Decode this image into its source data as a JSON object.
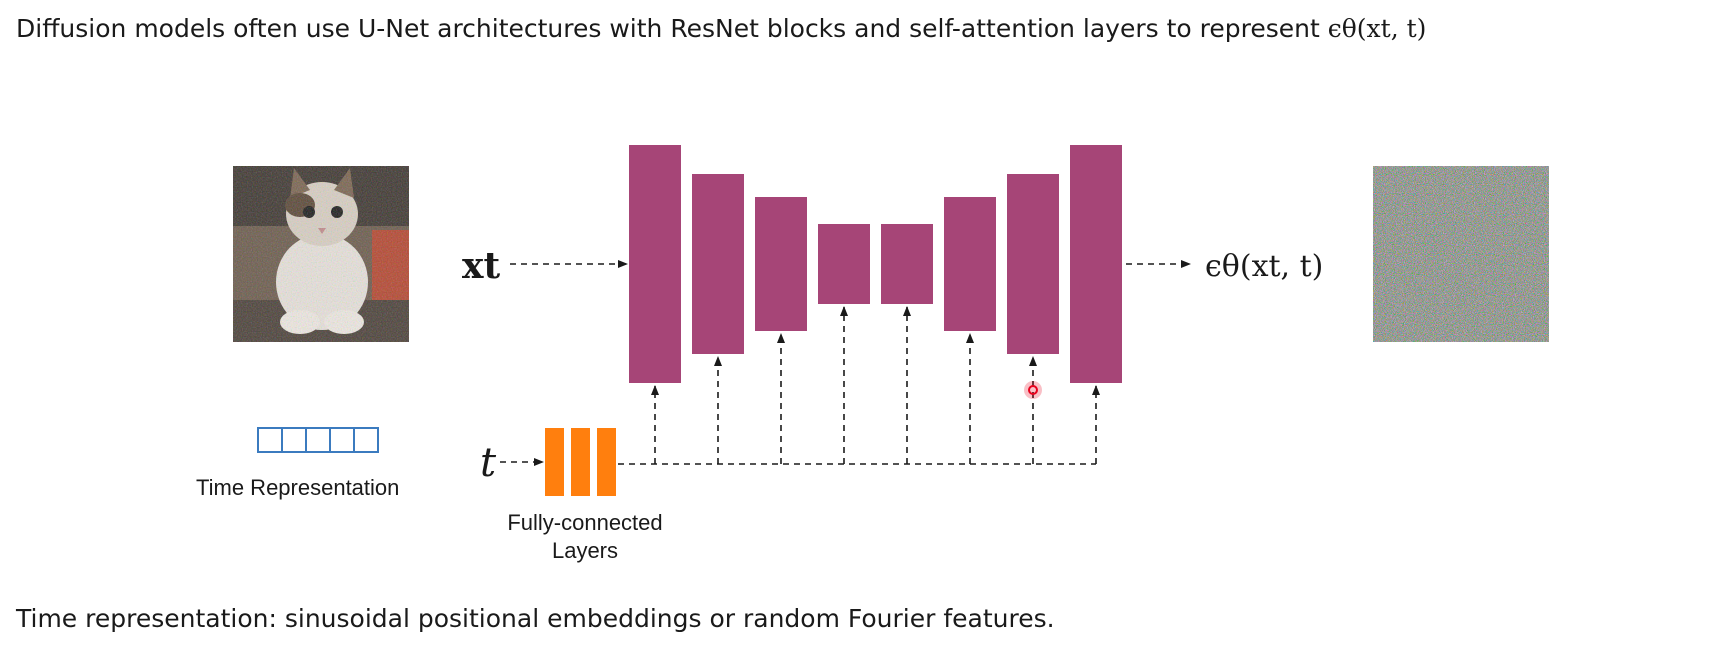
{
  "headline": {
    "text": "Diffusion models often use U-Net architectures with ResNet blocks and self-attention layers to represent",
    "math": "ϵθ(xt, t)"
  },
  "input_label": "xt",
  "output_label": "ϵθ(xt, t)",
  "time_label": "t",
  "time_representation_label": "Time Representation",
  "fc_label_line1": "Fully-connected",
  "fc_label_line2": "Layers",
  "footer": "Time representation: sinusoidal positional embeddings or random Fourier features.",
  "colors": {
    "unet_block": "#a64577",
    "fc_layer": "#ff7f0e",
    "time_vector": "#3b7bbf",
    "cursor": "#e8001c"
  },
  "icons": {
    "input_image": "noisy-cat-photo",
    "output_image": "noise-image",
    "cursor": "cursor-dot-icon"
  }
}
